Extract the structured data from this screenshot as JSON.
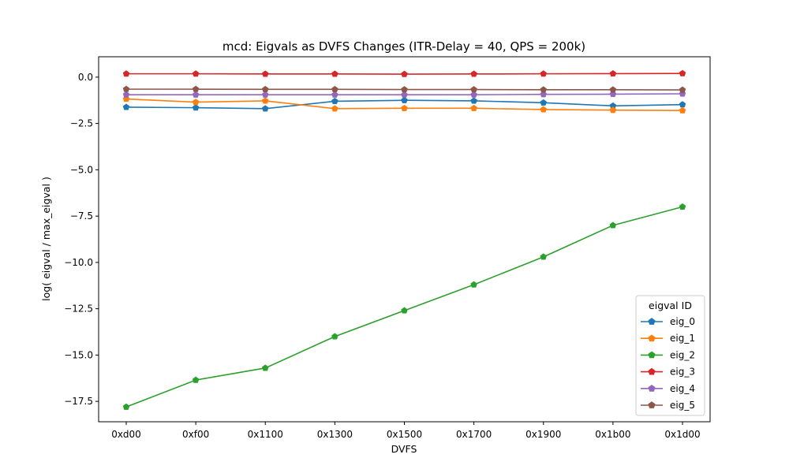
{
  "chart_data": {
    "type": "line",
    "title": "mcd: Eigvals as DVFS Changes (ITR-Delay = 40, QPS = 200k)",
    "xlabel": "DVFS",
    "ylabel": "log( eigval / max_eigval )",
    "categories": [
      "0xd00",
      "0xf00",
      "0x1100",
      "0x1300",
      "0x1500",
      "0x1700",
      "0x1900",
      "0x1b00",
      "0x1d00"
    ],
    "ylim": [
      -18.6,
      1.1
    ],
    "yticks": [
      0.0,
      -2.5,
      -5.0,
      -7.5,
      -10.0,
      -12.5,
      -15.0,
      -17.5
    ],
    "ytick_labels": [
      "0.0",
      "−2.5",
      "−5.0",
      "−7.5",
      "−10.0",
      "−12.5",
      "−15.0",
      "−17.5"
    ],
    "grid": false,
    "legend": {
      "title": "eigval ID",
      "placement": "lower-right"
    },
    "marker": "pentagon",
    "series": [
      {
        "name": "eig_0",
        "color": "#1f77b4",
        "values": [
          -1.62,
          -1.65,
          -1.7,
          -1.3,
          -1.25,
          -1.28,
          -1.38,
          -1.55,
          -1.48
        ]
      },
      {
        "name": "eig_1",
        "color": "#ff7f0e",
        "values": [
          -1.18,
          -1.35,
          -1.28,
          -1.7,
          -1.68,
          -1.68,
          -1.75,
          -1.78,
          -1.8
        ]
      },
      {
        "name": "eig_2",
        "color": "#2ca02c",
        "values": [
          -17.8,
          -16.35,
          -15.7,
          -14.0,
          -12.6,
          -11.2,
          -9.7,
          -8.0,
          -7.0
        ]
      },
      {
        "name": "eig_3",
        "color": "#d62728",
        "values": [
          0.18,
          0.18,
          0.17,
          0.17,
          0.16,
          0.17,
          0.18,
          0.19,
          0.2
        ]
      },
      {
        "name": "eig_4",
        "color": "#9467bd",
        "values": [
          -0.95,
          -0.95,
          -0.95,
          -0.95,
          -0.95,
          -0.95,
          -0.93,
          -0.92,
          -0.9
        ]
      },
      {
        "name": "eig_5",
        "color": "#8c564b",
        "values": [
          -0.65,
          -0.65,
          -0.66,
          -0.66,
          -0.67,
          -0.67,
          -0.68,
          -0.68,
          -0.69
        ]
      }
    ]
  }
}
